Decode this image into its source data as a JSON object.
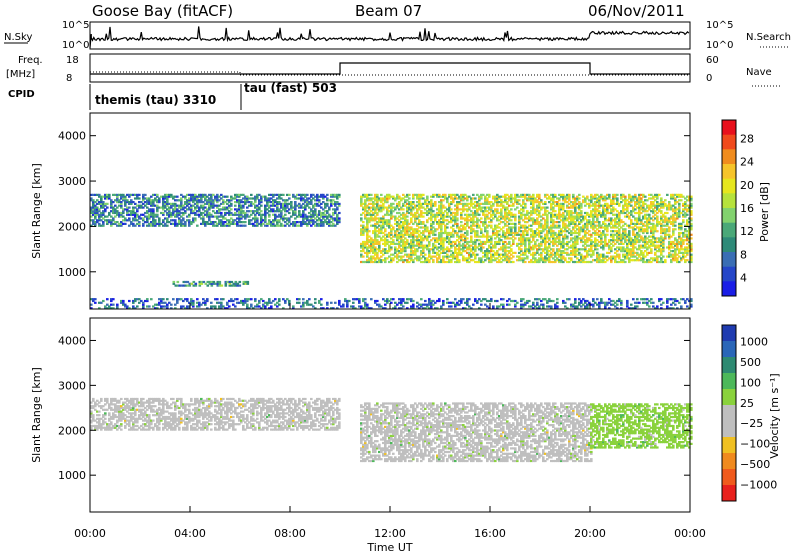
{
  "header": {
    "station": "Goose Bay (fitACF)",
    "beam": "Beam 07",
    "date": "06/Nov/2011"
  },
  "top_panels": {
    "nsky_label": "N.Sky",
    "nsky_ticks": [
      "10^5",
      "10^0"
    ],
    "nsearch_label": "N.Search",
    "nsearch_ticks": [
      "10^5",
      "10^0"
    ],
    "freq_label_line1": "Freq.",
    "freq_label_line2": "[MHz]",
    "freq_ticks": [
      "18",
      "8"
    ],
    "nave_label": "Nave",
    "nave_ticks": [
      "60",
      "0"
    ],
    "cpid_label": "CPID",
    "cpid_segments": [
      {
        "name": "themis (tau) 3310",
        "start_hour": 0.0,
        "end_hour": 6.05
      },
      {
        "name": "tau (fast) 503",
        "start_hour": 6.05,
        "end_hour": 24.0
      }
    ]
  },
  "power_colorbar": {
    "label": "Power [dB]",
    "ticks": [
      "28",
      "24",
      "20",
      "16",
      "12",
      "8",
      "4"
    ],
    "colors": [
      "#e8101c",
      "#f04a1c",
      "#f08c1e",
      "#f6c42a",
      "#e6e61e",
      "#b6e23c",
      "#82d26e",
      "#4aa878",
      "#2e8a78",
      "#3a6eb4",
      "#2546c8",
      "#1a1ee6"
    ]
  },
  "velocity_colorbar": {
    "label": "Velocity [m s⁻¹]",
    "ticks": [
      "1000",
      "500",
      "100",
      "25",
      "−25",
      "−100",
      "−500",
      "−1000"
    ],
    "colors": [
      "#1f3bb0",
      "#2a66b8",
      "#2e8a72",
      "#4db85a",
      "#8ad23c",
      "#bfbfbf",
      "#bfbfbf",
      "#f0c022",
      "#f08a1e",
      "#f05a1c",
      "#e8201c"
    ]
  },
  "chart_data": [
    {
      "type": "heatmap",
      "panel": "power",
      "title": "",
      "xlabel": "Time UT",
      "ylabel": "Slant Range [km]",
      "x_ticks": [
        "00:00",
        "04:00",
        "08:00",
        "12:00",
        "16:00",
        "20:00",
        "00:00"
      ],
      "y_ticks": [
        "4000",
        "3000",
        "2000",
        "1000"
      ],
      "xlim_hours": [
        0,
        24
      ],
      "ylim_km": [
        180,
        4500
      ],
      "colorbar_label": "Power [dB]",
      "colorbar_range_db": [
        0,
        32
      ],
      "regions": [
        {
          "name": "early echo band",
          "t_start": 0.0,
          "t_end": 10.0,
          "r_low": 2000,
          "r_high": 2700,
          "typical_db": 8
        },
        {
          "name": "near-range band",
          "t_start": 3.3,
          "t_end": 6.3,
          "r_low": 680,
          "r_high": 800,
          "typical_db": 10
        },
        {
          "name": "late echo band",
          "t_start": 10.8,
          "t_end": 24.0,
          "r_low": 1200,
          "r_high": 2700,
          "typical_db": 18
        },
        {
          "name": "ground scatter floor",
          "t_start": 0.0,
          "t_end": 24.0,
          "r_low": 180,
          "r_high": 420,
          "typical_db": 6
        }
      ]
    },
    {
      "type": "heatmap",
      "panel": "velocity",
      "title": "",
      "xlabel": "Time UT",
      "ylabel": "Slant Range [km]",
      "x_ticks": [
        "00:00",
        "04:00",
        "08:00",
        "12:00",
        "16:00",
        "20:00",
        "00:00"
      ],
      "y_ticks": [
        "4000",
        "3000",
        "2000",
        "1000"
      ],
      "xlim_hours": [
        0,
        24
      ],
      "ylim_km": [
        180,
        4500
      ],
      "colorbar_label": "Velocity [m s⁻¹]",
      "colorbar_range_ms": [
        -1000,
        1000
      ],
      "regions": [
        {
          "name": "early echo band",
          "t_start": 0.0,
          "t_end": 10.0,
          "r_low": 2000,
          "r_high": 2700,
          "typical_ms": 0
        },
        {
          "name": "late echo band",
          "t_start": 10.8,
          "t_end": 20.0,
          "r_low": 1300,
          "r_high": 2600,
          "typical_ms": 0
        },
        {
          "name": "late positive band",
          "t_start": 20.0,
          "t_end": 24.0,
          "r_low": 1600,
          "r_high": 2600,
          "typical_ms": 150
        }
      ]
    }
  ]
}
